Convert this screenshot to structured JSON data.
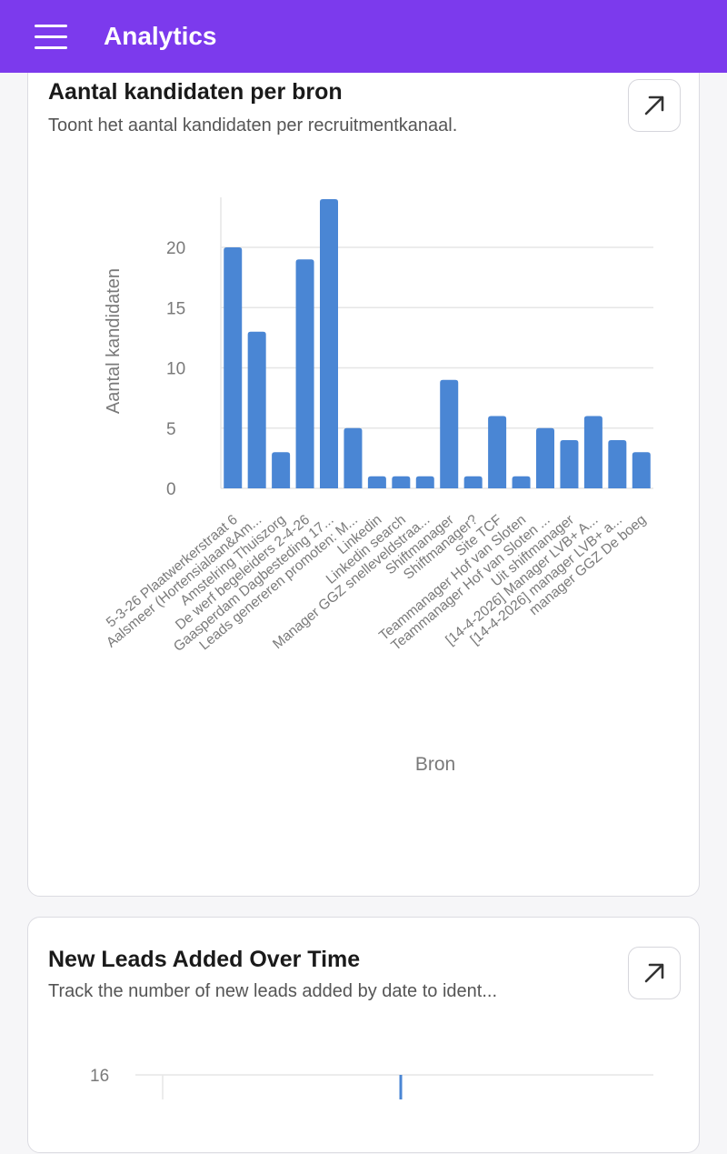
{
  "app": {
    "title": "Analytics"
  },
  "colors": {
    "appbar": "#7c3aed",
    "bar": "#4a86d4",
    "grid": "#e6e6e6"
  },
  "icons": {
    "menu": "hamburger-menu-icon",
    "expand": "arrow-up-right-icon"
  },
  "card1": {
    "title": "Aantal kandidaten per bron",
    "subtitle": "Toont het aantal kandidaten per recruitmentkanaal."
  },
  "card2": {
    "title": "New Leads Added Over Time",
    "subtitle": "Track the number of new leads added by date to ident..."
  },
  "chart_data": [
    {
      "type": "bar",
      "xlabel": "Bron",
      "ylabel": "Aantal kandidaten",
      "ylim": [
        0,
        24
      ],
      "yticks": [
        0,
        5,
        10,
        15,
        20
      ],
      "grid": true,
      "categories": [
        "5-3-26 Plaatwerkerstraat 6",
        "Aalsmeer (Hortensialaan&Am...",
        "Amstelring Thuiszorg",
        "De werf begeleiders 2-4-26",
        "Gaasperdam Dagbesteding 17...",
        "Leads genereren promoten: M...",
        "Linkedin",
        "Linkedin search",
        "Manager GGZ snelleveldstraa...",
        "Shiftmanager",
        "Shiftmanager?",
        "Site TCF",
        "Teammanager Hof van Sloten",
        "Teammanager Hof van Sloten ...",
        "Uit shiftmanager",
        "[14-4-2026] Manager LVB+ A...",
        "[14-4-2026] manager LVB+ a...",
        "manager GGZ De boeg"
      ],
      "values": [
        20,
        13,
        3,
        19,
        24,
        5,
        1,
        1,
        1,
        9,
        1,
        6,
        1,
        5,
        4,
        6,
        4,
        3
      ]
    },
    {
      "type": "line",
      "yticks": [
        16
      ]
    }
  ]
}
